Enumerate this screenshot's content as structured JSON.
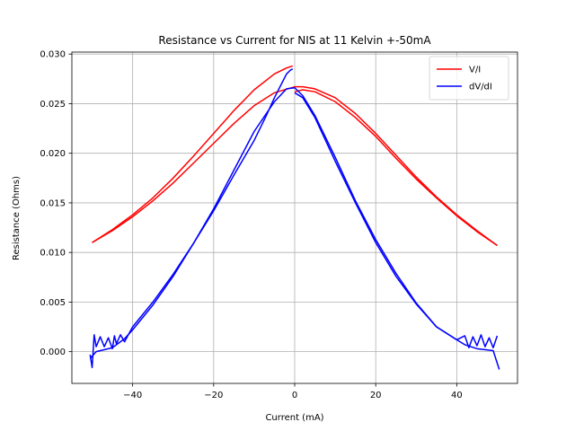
{
  "chart_data": {
    "type": "line",
    "title": "Resistance vs Current for NIS at 11 Kelvin +-50mA",
    "xlabel": "Current (mA)",
    "ylabel": "Resistance (Ohms)",
    "xlim": [
      -55,
      55
    ],
    "ylim": [
      -0.0032,
      0.0302
    ],
    "xticks": [
      -40,
      -20,
      0,
      20,
      40
    ],
    "yticks": [
      0.0,
      0.005,
      0.01,
      0.015,
      0.02,
      0.025,
      0.03
    ],
    "xtick_labels": [
      "−40",
      "−20",
      "0",
      "20",
      "40"
    ],
    "ytick_labels": [
      "0.000",
      "0.005",
      "0.010",
      "0.015",
      "0.020",
      "0.025",
      "0.030"
    ],
    "grid": true,
    "legend_position": "top-right",
    "series": [
      {
        "name": "V/I",
        "color": "#ff0000",
        "segments": [
          {
            "x": [
              -50,
              -45,
              -40,
              -35,
              -30,
              -25,
              -20,
              -15,
              -10,
              -5,
              -2,
              -0.5
            ],
            "y": [
              0.011,
              0.0123,
              0.0138,
              0.0155,
              0.0175,
              0.0197,
              0.022,
              0.0243,
              0.0264,
              0.028,
              0.0286,
              0.0288
            ]
          },
          {
            "x": [
              -50,
              -45,
              -40,
              -35,
              -30,
              -25,
              -20,
              -15,
              -10,
              -5,
              0,
              2,
              5,
              10,
              15,
              20,
              25,
              30,
              35,
              40,
              45,
              50
            ],
            "y": [
              0.011,
              0.0122,
              0.0136,
              0.0152,
              0.017,
              0.019,
              0.021,
              0.023,
              0.0248,
              0.0261,
              0.0267,
              0.0267,
              0.0265,
              0.0256,
              0.024,
              0.022,
              0.0198,
              0.0176,
              0.0156,
              0.0138,
              0.0122,
              0.0107
            ]
          },
          {
            "x": [
              0,
              2,
              5,
              10,
              15,
              20,
              25,
              30,
              35,
              40,
              45,
              50
            ],
            "y": [
              0.0262,
              0.0264,
              0.0262,
              0.0252,
              0.0236,
              0.0217,
              0.0195,
              0.0174,
              0.0155,
              0.0137,
              0.0121,
              0.0107
            ]
          }
        ]
      },
      {
        "name": "dV/dI",
        "color": "#0000ff",
        "segments": [
          {
            "x": [
              -50.5,
              -50,
              -49.5,
              -49,
              -48,
              -47,
              -46,
              -45,
              -44.5,
              -44,
              -43,
              -42,
              -40,
              -35,
              -30,
              -25,
              -20,
              -15,
              -10,
              -7,
              -5,
              -3,
              -2,
              -1,
              -0.5
            ],
            "y": [
              -0.0003,
              -0.0016,
              0.0017,
              0.0005,
              0.0015,
              0.0005,
              0.0014,
              0.0003,
              0.0016,
              0.0008,
              0.0017,
              0.001,
              0.0025,
              0.005,
              0.0078,
              0.0109,
              0.0142,
              0.0178,
              0.0213,
              0.0238,
              0.0256,
              0.0272,
              0.028,
              0.0284,
              0.0285
            ]
          },
          {
            "x": [
              -50.5,
              -49,
              -45,
              -42,
              -40,
              -35,
              -30,
              -25,
              -20,
              -15,
              -10,
              -5,
              -2,
              0,
              2,
              5,
              10,
              15,
              20,
              25,
              30,
              35,
              40,
              42,
              45,
              49,
              50.5
            ],
            "y": [
              -0.0007,
              0.0,
              0.0004,
              0.0013,
              0.0022,
              0.0047,
              0.0076,
              0.0109,
              0.0144,
              0.0183,
              0.0222,
              0.0252,
              0.0265,
              0.0266,
              0.0258,
              0.0238,
              0.0196,
              0.0152,
              0.0113,
              0.0079,
              0.0049,
              0.0025,
              0.0012,
              0.0007,
              0.0003,
              0.0001,
              -0.0018
            ]
          },
          {
            "x": [
              0,
              2,
              5,
              10,
              15,
              20,
              25,
              30,
              35,
              40,
              42,
              43,
              44,
              45,
              46,
              47,
              48,
              49,
              50
            ],
            "y": [
              0.0261,
              0.0256,
              0.0236,
              0.0192,
              0.015,
              0.011,
              0.0076,
              0.0048,
              0.0025,
              0.0012,
              0.0016,
              0.0004,
              0.0015,
              0.0006,
              0.0017,
              0.0005,
              0.0014,
              0.0004,
              0.0016
            ]
          }
        ]
      }
    ]
  }
}
